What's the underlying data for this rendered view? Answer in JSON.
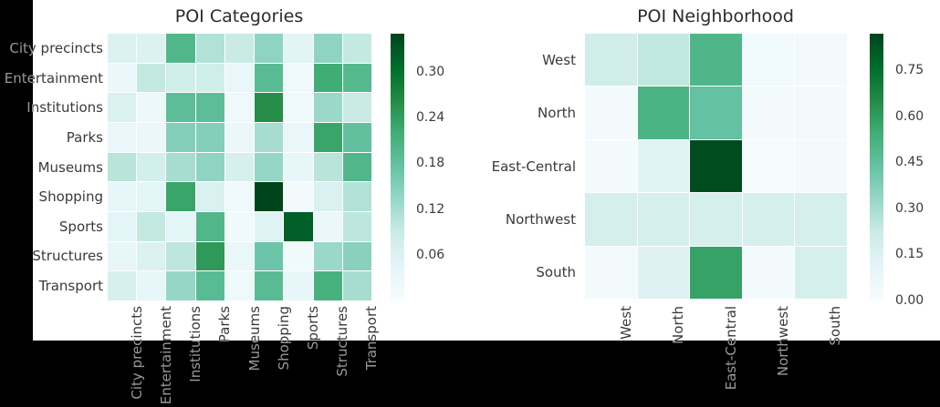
{
  "figure": {
    "background": "#000000",
    "panel": "#ffffff",
    "title_color": "#2b2b2b",
    "text_dark": "#3a3a3a",
    "text_light": "#999999"
  },
  "colormap": {
    "name": "BuGn",
    "stops": [
      [
        0.0,
        "#f7fcfd"
      ],
      [
        0.125,
        "#e5f5f9"
      ],
      [
        0.25,
        "#ccece6"
      ],
      [
        0.375,
        "#99d8c9"
      ],
      [
        0.5,
        "#66c2a4"
      ],
      [
        0.625,
        "#41ae76"
      ],
      [
        0.75,
        "#238b45"
      ],
      [
        0.875,
        "#006d2c"
      ],
      [
        1.0,
        "#00441b"
      ]
    ]
  },
  "chart_data": [
    {
      "type": "heatmap",
      "title": "POI Categories",
      "rows": [
        "City precincts",
        "Entertainment",
        "Institutions",
        "Parks",
        "Museums",
        "Shopping",
        "Sports",
        "Structures",
        "Transport"
      ],
      "cols": [
        "City precincts",
        "Entertainment",
        "Institutions",
        "Parks",
        "Museums",
        "Shopping",
        "Sports",
        "Structures",
        "Transport"
      ],
      "values": [
        [
          0.06,
          0.06,
          0.2,
          0.11,
          0.09,
          0.14,
          0.05,
          0.14,
          0.095
        ],
        [
          0.03,
          0.095,
          0.08,
          0.08,
          0.035,
          0.19,
          0.02,
          0.22,
          0.195
        ],
        [
          0.065,
          0.025,
          0.185,
          0.185,
          0.02,
          0.26,
          0.02,
          0.13,
          0.09
        ],
        [
          0.035,
          0.03,
          0.15,
          0.15,
          0.03,
          0.12,
          0.035,
          0.23,
          0.18
        ],
        [
          0.105,
          0.075,
          0.12,
          0.14,
          0.07,
          0.135,
          0.04,
          0.105,
          0.2
        ],
        [
          0.04,
          0.045,
          0.23,
          0.065,
          0.017,
          0.35,
          0.012,
          0.065,
          0.11
        ],
        [
          0.045,
          0.095,
          0.045,
          0.2,
          0.017,
          0.055,
          0.32,
          0.03,
          0.1
        ],
        [
          0.04,
          0.06,
          0.1,
          0.245,
          0.035,
          0.17,
          0.017,
          0.13,
          0.145
        ],
        [
          0.07,
          0.04,
          0.135,
          0.19,
          0.02,
          0.19,
          0.04,
          0.21,
          0.12
        ]
      ],
      "vmin": 0.0,
      "vmax": 0.35,
      "colorbar_ticks": [
        "0.30",
        "0.24",
        "0.18",
        "0.12",
        "0.06"
      ],
      "legend_position": "right"
    },
    {
      "type": "heatmap",
      "title": "POI Neighborhood",
      "rows": [
        "West",
        "North",
        "East-Central",
        "Northwest",
        "South"
      ],
      "cols": [
        "West",
        "North",
        "East-Central",
        "Northwest",
        "South"
      ],
      "values": [
        [
          0.2,
          0.24,
          0.5,
          0.035,
          0.03
        ],
        [
          0.03,
          0.51,
          0.44,
          0.025,
          0.03
        ],
        [
          0.025,
          0.13,
          0.85,
          0.02,
          0.03
        ],
        [
          0.18,
          0.18,
          0.18,
          0.18,
          0.18
        ],
        [
          0.03,
          0.14,
          0.58,
          0.025,
          0.18
        ]
      ],
      "vmin": 0.0,
      "vmax": 0.87,
      "colorbar_ticks": [
        "0.75",
        "0.60",
        "0.45",
        "0.30",
        "0.15",
        "0.00"
      ],
      "legend_position": "right"
    }
  ]
}
